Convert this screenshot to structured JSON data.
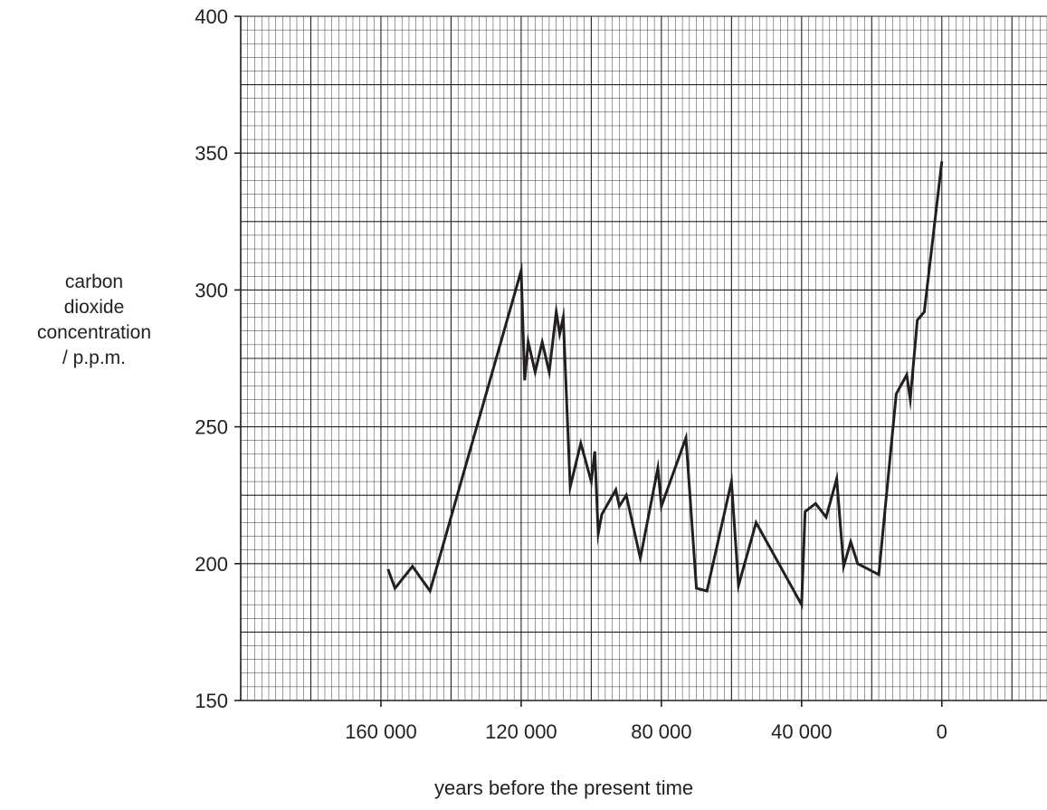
{
  "chart_data": {
    "type": "line",
    "xlabel": "years before the present time",
    "ylabel_lines": [
      "carbon",
      "dioxide",
      "concentration",
      "/ p.p.m."
    ],
    "xlim": [
      200000,
      -30000
    ],
    "ylim": [
      150,
      400
    ],
    "x_tick_values": [
      160000,
      120000,
      80000,
      40000,
      0
    ],
    "x_tick_labels": [
      "160 000",
      "120 000",
      "80 000",
      "40 000",
      "0"
    ],
    "y_tick_values": [
      150,
      200,
      250,
      300,
      350,
      400
    ],
    "y_tick_labels": [
      "150",
      "200",
      "250",
      "300",
      "350",
      "400"
    ],
    "grid": true,
    "series": [
      {
        "x": [
          158000,
          156000,
          151000,
          146000,
          120000,
          119000,
          118000,
          116000,
          114000,
          112000,
          110000,
          109000,
          108000,
          106000,
          103000,
          100000,
          99000,
          98000,
          97000,
          93000,
          92000,
          90000,
          86000,
          81000,
          80000,
          73000,
          70000,
          67000,
          60000,
          58000,
          53000,
          40000,
          39000,
          36000,
          33000,
          30000,
          28000,
          26000,
          24000,
          18000,
          13000,
          10000,
          9000,
          7000,
          5000,
          0
        ],
        "y": [
          198,
          191,
          199,
          190,
          307,
          267,
          281,
          270,
          281,
          270,
          292,
          284,
          290,
          228,
          244,
          230,
          241,
          211,
          218,
          227,
          221,
          225,
          202,
          235,
          221,
          246,
          191,
          190,
          230,
          192,
          215,
          185,
          219,
          222,
          217,
          231,
          199,
          208,
          200,
          196,
          262,
          269,
          260,
          289,
          292,
          347
        ]
      }
    ]
  }
}
